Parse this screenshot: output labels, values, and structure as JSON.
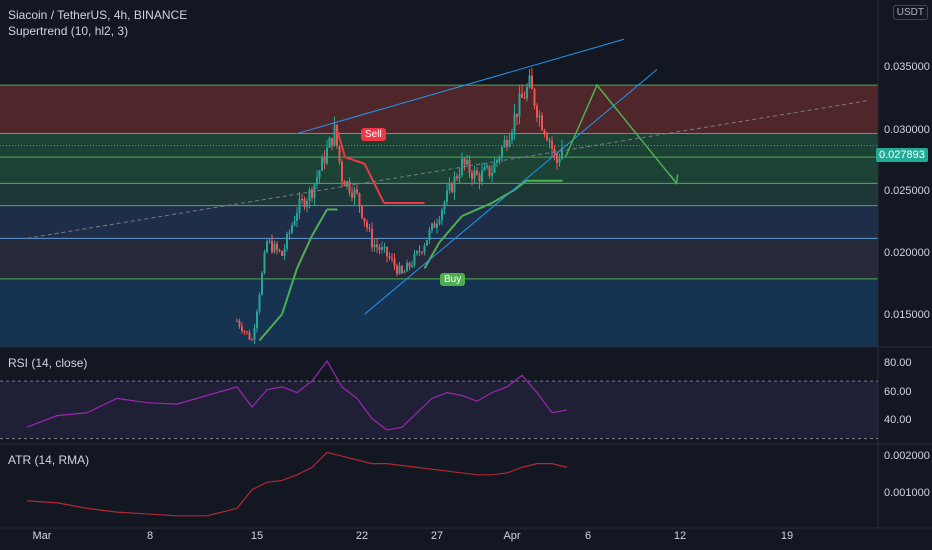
{
  "header": {
    "symbol_line": "Siacoin / TetherUS, 4h, BINANCE",
    "indicator_line": "Supertrend (10, hl2, 3)",
    "currency": "USDT",
    "last_price": "0.027893"
  },
  "price_axis": [
    "0.035000",
    "0.030000",
    "0.025000",
    "0.020000",
    "0.015000"
  ],
  "rsi_panel": {
    "title": "RSI (14, close)",
    "axis": [
      "80.00",
      "60.00",
      "40.00"
    ]
  },
  "atr_panel": {
    "title": "ATR (14, RMA)",
    "axis": [
      "0.002000",
      "0.001000"
    ]
  },
  "time_axis": [
    "Mar",
    "8",
    "15",
    "22",
    "27",
    "Apr",
    "6",
    "12",
    "19"
  ],
  "signals": {
    "sell": "Sell",
    "buy": "Buy"
  },
  "colors": {
    "background": "#131722",
    "bull": "#26a69a",
    "bear": "#ef5350",
    "supertrend_up": "#4caf50",
    "supertrend_down": "#f23645",
    "rsi": "#9c27b0",
    "atr": "#b22833",
    "trendline": "#2196f3",
    "projection": "#4caf50"
  },
  "chart_data": [
    {
      "type": "candlestick",
      "title": "Siacoin / TetherUS, 4h, BINANCE",
      "ylim": [
        0.0125,
        0.039
      ],
      "zones": [
        {
          "from": 0.0288,
          "to": 0.0325,
          "color": "#5b2a2d"
        },
        {
          "from": 0.025,
          "to": 0.0288,
          "color": "#1e4a3a"
        },
        {
          "from": 0.0233,
          "to": 0.025,
          "color": "#1f3d3a"
        },
        {
          "from": 0.0208,
          "to": 0.0233,
          "color": "#22334f"
        },
        {
          "from": 0.0177,
          "to": 0.0208,
          "color": "#2a2d3e"
        },
        {
          "from": 0.0125,
          "to": 0.0177,
          "color": "#17385a"
        }
      ],
      "levels": [
        0.0325,
        0.0288,
        0.027,
        0.025,
        0.0233,
        0.0208,
        0.0177
      ],
      "price_path": [
        [
          1.0,
          0.0128
        ],
        [
          7.5,
          0.013
        ],
        [
          12.0,
          0.0133
        ],
        [
          14.0,
          0.0145
        ],
        [
          15.0,
          0.013
        ],
        [
          16.0,
          0.0205
        ],
        [
          17.0,
          0.0195
        ],
        [
          18.0,
          0.023
        ],
        [
          19.0,
          0.0245
        ],
        [
          20.0,
          0.0275
        ],
        [
          20.5,
          0.029
        ],
        [
          21.0,
          0.0255
        ],
        [
          22.0,
          0.024
        ],
        [
          23.0,
          0.0205
        ],
        [
          24.0,
          0.0195
        ],
        [
          25.0,
          0.018
        ],
        [
          26.0,
          0.0195
        ],
        [
          27.0,
          0.0215
        ],
        [
          28.0,
          0.024
        ],
        [
          29.0,
          0.0265
        ],
        [
          30.0,
          0.0255
        ],
        [
          31.0,
          0.026
        ],
        [
          32.0,
          0.0285
        ],
        [
          32.8,
          0.031
        ],
        [
          33.5,
          0.0325
        ],
        [
          34.2,
          0.03
        ],
        [
          34.8,
          0.0285
        ],
        [
          35.3,
          0.0265
        ],
        [
          35.7,
          0.0279
        ]
      ],
      "supertrend": [
        [
          15.5,
          0.013,
          "up"
        ],
        [
          17.0,
          0.015,
          "up"
        ],
        [
          18.0,
          0.0185,
          "up"
        ],
        [
          19.0,
          0.021,
          "up"
        ],
        [
          20.0,
          0.023,
          "up"
        ],
        [
          20.7,
          0.023,
          "up"
        ],
        [
          20.7,
          0.029,
          "down"
        ],
        [
          21.2,
          0.027,
          "down"
        ],
        [
          22.5,
          0.0265,
          "down"
        ],
        [
          23.8,
          0.0235,
          "down"
        ],
        [
          26.5,
          0.0235,
          "down"
        ],
        [
          26.5,
          0.0185,
          "up"
        ],
        [
          27.5,
          0.0205,
          "up"
        ],
        [
          29.0,
          0.0225,
          "up"
        ],
        [
          31.0,
          0.0235,
          "up"
        ],
        [
          32.5,
          0.0245,
          "up"
        ],
        [
          33.3,
          0.0252,
          "up"
        ],
        [
          35.7,
          0.0252,
          "up"
        ]
      ],
      "trendlines": [
        {
          "from": [
            18.0,
            0.0288
          ],
          "to": [
            39.8,
            0.036
          ]
        },
        {
          "from": [
            22.5,
            0.015
          ],
          "to": [
            42.0,
            0.0337
          ]
        },
        {
          "from": [
            0.0,
            0.0208
          ],
          "to": [
            56.0,
            0.0313
          ],
          "dashed": true
        }
      ],
      "projection": [
        [
          35.9,
          0.027
        ],
        [
          38.0,
          0.0325
        ],
        [
          43.3,
          0.025
        ]
      ]
    },
    {
      "type": "line",
      "title": "RSI (14, close)",
      "ylim": [
        27,
        93
      ],
      "bands": [
        70,
        30
      ],
      "x": [
        0,
        2,
        4,
        6,
        8,
        10,
        12,
        14,
        15,
        16,
        17,
        18,
        19,
        20,
        21,
        22,
        23,
        24,
        25,
        26,
        27,
        28,
        29,
        30,
        31,
        32,
        33,
        34,
        35,
        36
      ],
      "values": [
        38,
        46,
        48,
        58,
        55,
        54,
        60,
        66,
        52,
        64,
        66,
        62,
        70,
        84,
        66,
        58,
        44,
        36,
        38,
        48,
        58,
        62,
        60,
        56,
        62,
        66,
        74,
        62,
        48,
        50
      ]
    },
    {
      "type": "line",
      "title": "ATR (14, RMA)",
      "ylim": [
        0.0002,
        0.0024
      ],
      "x": [
        0,
        2,
        4,
        6,
        8,
        10,
        12,
        13,
        14,
        15,
        16,
        17,
        18,
        19,
        20,
        21,
        22,
        23,
        24,
        26,
        28,
        30,
        31,
        32,
        33,
        34,
        35,
        36
      ],
      "values": [
        0.0009,
        0.00085,
        0.0007,
        0.0006,
        0.00055,
        0.0005,
        0.0005,
        0.0006,
        0.0007,
        0.0012,
        0.0014,
        0.00145,
        0.0016,
        0.0018,
        0.0022,
        0.0021,
        0.002,
        0.0019,
        0.0019,
        0.0018,
        0.0017,
        0.0016,
        0.0016,
        0.00165,
        0.0018,
        0.0019,
        0.0019,
        0.0018
      ]
    }
  ]
}
